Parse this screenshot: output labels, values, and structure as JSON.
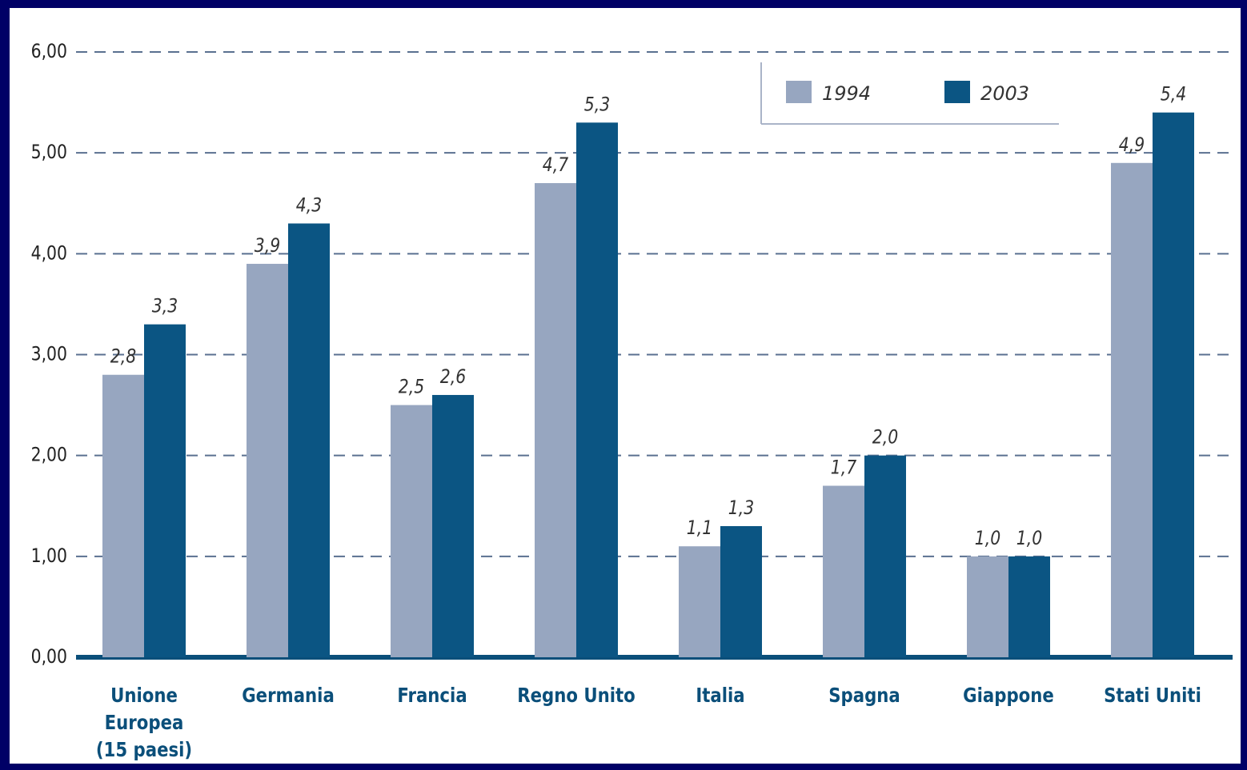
{
  "chart_data": {
    "type": "bar",
    "categories": [
      "Unione Europea\n(15 paesi)",
      "Germania",
      "Francia",
      "Regno Unito",
      "Italia",
      "Spagna",
      "Giappone",
      "Stati Uniti"
    ],
    "series": [
      {
        "name": "1994",
        "color": "#97a6c0",
        "values": [
          2.8,
          3.9,
          2.5,
          4.7,
          1.1,
          1.7,
          1.0,
          4.9
        ],
        "value_labels": [
          "2,8",
          "3,9",
          "2,5",
          "4,7",
          "1,1",
          "1,7",
          "1,0",
          "4,9"
        ]
      },
      {
        "name": "2003",
        "color": "#0b5583",
        "values": [
          3.3,
          4.3,
          2.6,
          5.3,
          1.3,
          2.0,
          1.0,
          5.4
        ],
        "value_labels": [
          "3,3",
          "4,3",
          "2,6",
          "5,3",
          "1,3",
          "2,0",
          "1,0",
          "5,4"
        ]
      }
    ],
    "ylim": [
      0,
      6
    ],
    "yticks": [
      {
        "value": 0,
        "label": "0,00"
      },
      {
        "value": 1,
        "label": "1,00"
      },
      {
        "value": 2,
        "label": "2,00"
      },
      {
        "value": 3,
        "label": "3,00"
      },
      {
        "value": 4,
        "label": "4,00"
      },
      {
        "value": 5,
        "label": "5,00"
      },
      {
        "value": 6,
        "label": "6,00"
      }
    ],
    "grid": true,
    "legend": "upper right"
  }
}
